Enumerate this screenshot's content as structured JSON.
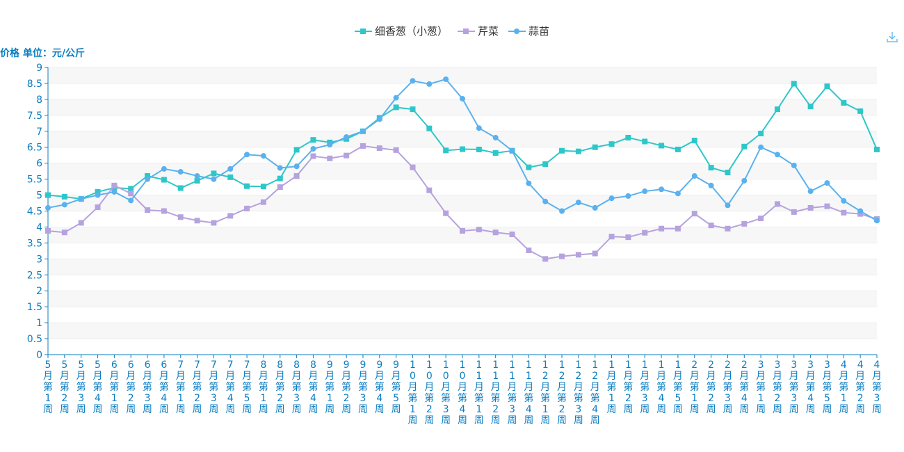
{
  "chart_data": {
    "type": "line",
    "ylabel": "价格 单位：元/公斤",
    "ylim": [
      0,
      9
    ],
    "yticks": [
      "0",
      "0.5",
      "1",
      "1.5",
      "2",
      "2.5",
      "3",
      "3.5",
      "4",
      "4.5",
      "5",
      "5.5",
      "6",
      "6.5",
      "7",
      "7.5",
      "8",
      "8.5",
      "9"
    ],
    "grid": true,
    "legend_position": "top-center",
    "categories": [
      "5月第1周",
      "5月第2周",
      "5月第3周",
      "5月第4周",
      "6月第1周",
      "6月第2周",
      "6月第3周",
      "6月第4周",
      "7月第1周",
      "7月第2周",
      "7月第3周",
      "7月第4周",
      "7月第5周",
      "8月第1周",
      "8月第2周",
      "8月第3周",
      "8月第4周",
      "9月第1周",
      "9月第2周",
      "9月第3周",
      "9月第4周",
      "9月第5周",
      "10月第1周",
      "10月第2周",
      "10月第3周",
      "10月第4周",
      "11月第1周",
      "11月第2周",
      "11月第3周",
      "11月第4周",
      "12月第1周",
      "12月第2周",
      "12月第3周",
      "12月第4周",
      "1月第1周",
      "1月第2周",
      "1月第3周",
      "1月第4周",
      "1月第5周",
      "2月第1周",
      "2月第2周",
      "2月第3周",
      "2月第4周",
      "3月第1周",
      "3月第2周",
      "3月第3周",
      "3月第4周",
      "3月第5周",
      "4月第1周",
      "4月第2周",
      "4月第3周"
    ],
    "series": [
      {
        "name": "细香葱（小葱）",
        "color": "#2ec7c9",
        "marker": "square",
        "values": [
          5.0,
          4.95,
          4.88,
          5.1,
          5.23,
          5.2,
          5.6,
          5.48,
          5.22,
          5.45,
          5.68,
          5.56,
          5.28,
          5.27,
          5.52,
          6.42,
          6.73,
          6.65,
          6.76,
          7.0,
          7.42,
          7.75,
          7.69,
          7.09,
          6.4,
          6.44,
          6.43,
          6.32,
          6.39,
          5.87,
          5.97,
          6.39,
          6.37,
          6.5,
          6.6,
          6.8,
          6.68,
          6.55,
          6.43,
          6.71,
          5.86,
          5.71,
          6.52,
          6.93,
          7.69,
          8.49,
          7.78,
          8.41,
          7.89,
          7.63,
          6.43
        ]
      },
      {
        "name": "芹菜",
        "color": "#b6a2de",
        "marker": "square",
        "values": [
          3.88,
          3.83,
          4.13,
          4.62,
          5.3,
          5.05,
          4.53,
          4.5,
          4.31,
          4.2,
          4.13,
          4.35,
          4.58,
          4.78,
          5.25,
          5.6,
          6.22,
          6.15,
          6.24,
          6.54,
          6.47,
          6.41,
          5.87,
          5.15,
          4.43,
          3.88,
          3.92,
          3.83,
          3.77,
          3.27,
          3.0,
          3.08,
          3.13,
          3.17,
          3.7,
          3.68,
          3.82,
          3.95,
          3.95,
          4.42,
          4.05,
          3.95,
          4.1,
          4.27,
          4.72,
          4.47,
          4.6,
          4.65,
          4.45,
          4.41,
          4.25
        ]
      },
      {
        "name": "蒜苗",
        "color": "#5ab1ef",
        "marker": "circle",
        "values": [
          4.6,
          4.7,
          4.88,
          5.0,
          5.1,
          4.83,
          5.5,
          5.82,
          5.73,
          5.6,
          5.5,
          5.82,
          6.27,
          6.23,
          5.85,
          5.9,
          6.45,
          6.58,
          6.82,
          7.0,
          7.38,
          8.05,
          8.58,
          8.48,
          8.63,
          8.02,
          7.1,
          6.8,
          6.39,
          5.37,
          4.8,
          4.5,
          4.77,
          4.6,
          4.9,
          4.97,
          5.12,
          5.18,
          5.05,
          5.6,
          5.3,
          4.68,
          5.45,
          6.5,
          6.27,
          5.93,
          5.12,
          5.38,
          4.82,
          4.5,
          4.2
        ]
      }
    ]
  },
  "toolbar": {
    "download_icon": "download-icon"
  }
}
